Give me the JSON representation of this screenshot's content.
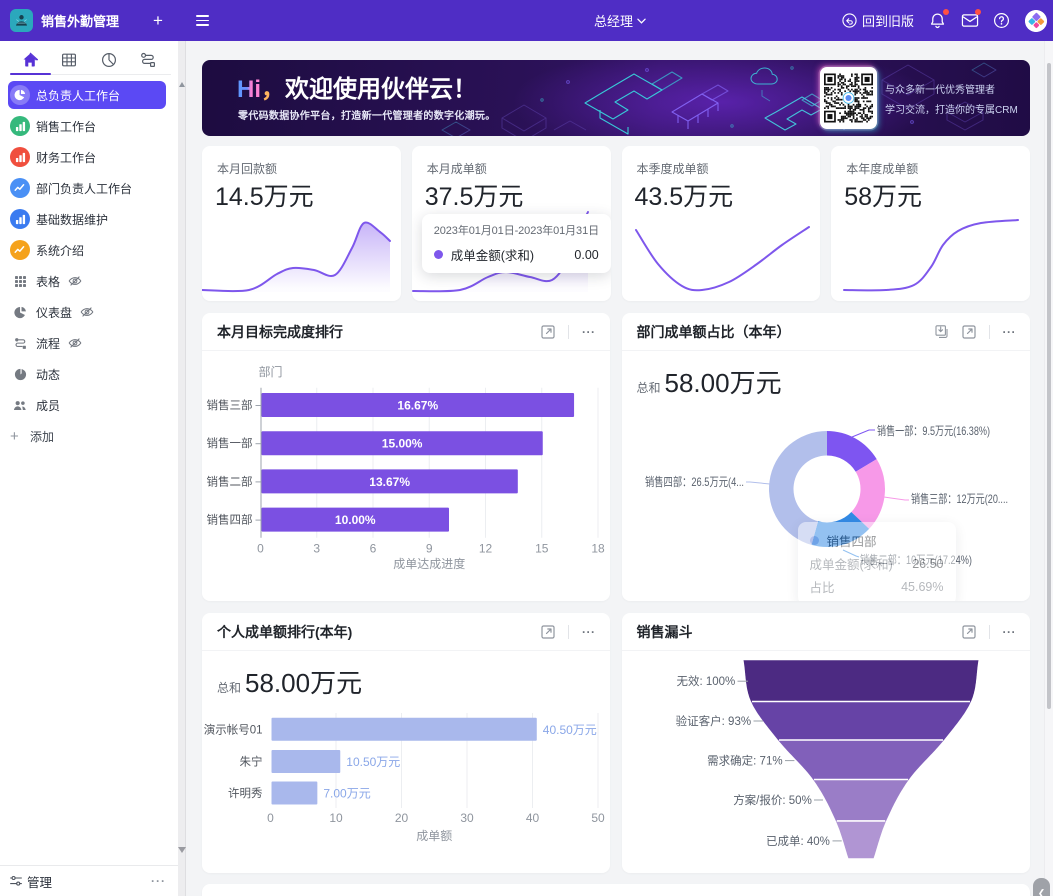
{
  "topbar": {
    "app_title": "销售外勤管理",
    "plus": "+",
    "role": "总经理",
    "back_label": "回到旧版",
    "icons": [
      "back-icon",
      "bell-icon",
      "mail-icon",
      "help-icon",
      "avatar"
    ]
  },
  "sidebar": {
    "tabs": [
      {
        "name": "home",
        "active": true
      },
      {
        "name": "table",
        "active": false
      },
      {
        "name": "clock",
        "active": false
      },
      {
        "name": "flow",
        "active": false
      }
    ],
    "items": [
      {
        "label": "总负责人工作台",
        "icon": "pie-chart",
        "color": "rgba(255,255,255,0.28)",
        "selected": true
      },
      {
        "label": "销售工作台",
        "icon": "bar-chart",
        "color": "#35b97c",
        "selected": false
      },
      {
        "label": "财务工作台",
        "icon": "bar-chart",
        "color": "#f04f3e",
        "selected": false
      },
      {
        "label": "部门负责人工作台",
        "icon": "trend-line",
        "color": "#4a90f5",
        "selected": false
      },
      {
        "label": "基础数据维护",
        "icon": "bar-chart",
        "color": "#3a7bf0",
        "selected": false
      },
      {
        "label": "系统介绍",
        "icon": "trend-line",
        "color": "#f5a21b",
        "selected": false
      }
    ],
    "tools": [
      {
        "label": "表格",
        "icon": "grid-dots",
        "eye": true
      },
      {
        "label": "仪表盘",
        "icon": "gauge-pie",
        "eye": true
      },
      {
        "label": "流程",
        "icon": "flow",
        "eye": true
      },
      {
        "label": "动态",
        "icon": "clock-solid",
        "eye": false
      },
      {
        "label": "成员",
        "icon": "members",
        "eye": false
      }
    ],
    "add_label": "添加",
    "manage_label": "管理",
    "manage_dots": "···"
  },
  "banner": {
    "hi": "Hi",
    "comma": "，",
    "title": "欢迎使用伙伴云！",
    "subtitle": "零代码数据协作平台，打造新一代管理者的数字化潮玩。",
    "qr_line1": "与众多新一代优秀管理者",
    "qr_line2": "学习交流，打造你的专属CRM"
  },
  "stat_cards": [
    {
      "title": "本月回款额",
      "value": "14.5万元"
    },
    {
      "title": "本月成单额",
      "value": "37.5万元"
    },
    {
      "title": "本季度成单额",
      "value": "43.5万元"
    },
    {
      "title": "本年度成单额",
      "value": "58万元"
    }
  ],
  "tooltip_card2": {
    "date_range": "2023年01月01日-2023年01月31日",
    "series_name": "成单金额(求和)",
    "value": "0.00",
    "dot_color": "#7e57ec"
  },
  "panels": {
    "goal": {
      "title": "本月目标完成度排行"
    },
    "dept": {
      "title": "部门成单额占比（本年）",
      "total_label": "总和",
      "total_value": "58.00万元"
    },
    "personal": {
      "title": "个人成单额排行(本年)",
      "total_label": "总和",
      "total_value": "58.00万元"
    },
    "funnel": {
      "title": "销售漏斗"
    }
  },
  "dept_tooltip": {
    "name": "销售四部",
    "row1_label": "成单金额(求和)",
    "row1_value": "26.50",
    "row2_label": "占比",
    "row2_value": "45.69%",
    "dot_color": "#b2bfeb"
  },
  "chart_data": [
    {
      "id": "goal_bar",
      "type": "bar",
      "title": "本月目标完成度排行",
      "orientation": "horizontal",
      "axis_name": "部门",
      "categories": [
        "销售三部",
        "销售一部",
        "销售二部",
        "销售四部"
      ],
      "values": [
        16.67,
        15.0,
        13.67,
        10.0
      ],
      "value_labels": [
        "16.67%",
        "15.00%",
        "13.67%",
        "10.00%"
      ],
      "xlabel": "成单达成进度",
      "xlim": [
        0,
        18
      ],
      "ticks": [
        0,
        3,
        6,
        9,
        12,
        15,
        18
      ],
      "bar_color": "#7b50e2",
      "grid": true,
      "value_label_position": "inside"
    },
    {
      "id": "dept_pie",
      "type": "pie",
      "title": "部门成单额占比（本年）",
      "total": "58.00万元",
      "series": [
        {
          "name": "销售一部",
          "amount": "9.5万元",
          "pct": 16.38,
          "color": "#7e55f1",
          "label": "销售一部：9.5万元(16.38%)"
        },
        {
          "name": "销售三部",
          "amount": "12万元",
          "pct": 20.69,
          "color": "#f799e8",
          "label": "销售三部：12万元(20...."
        },
        {
          "name": "销售二部",
          "amount": "10万元",
          "pct": 17.24,
          "color": "#338ae5",
          "label": "销售二部：10万元(17.24%)"
        },
        {
          "name": "销售四部",
          "amount": "26.5万元",
          "pct": 45.69,
          "color": "#b2bfeb",
          "label": "销售四部：26.5万元(4..."
        }
      ]
    },
    {
      "id": "personal_bar",
      "type": "bar",
      "title": "个人成单额排行(本年)",
      "orientation": "horizontal",
      "categories": [
        "演示帐号01",
        "朱宁",
        "许明秀"
      ],
      "values": [
        40.5,
        10.5,
        7.0
      ],
      "value_labels": [
        "40.50万元",
        "10.50万元",
        "7.00万元"
      ],
      "xlabel": "成单额",
      "xlim": [
        0,
        50
      ],
      "ticks": [
        0,
        10,
        20,
        30,
        40,
        50
      ],
      "bar_color": "#a9b8ec",
      "grid": true,
      "value_label_position": "outside",
      "value_label_color": "#8aa7e8"
    },
    {
      "id": "sales_funnel",
      "type": "funnel",
      "title": "销售漏斗",
      "stages": [
        {
          "label": "无效: 100%",
          "pct": 100
        },
        {
          "label": "验证客户: 93%",
          "pct": 93
        },
        {
          "label": "需求确定: 71%",
          "pct": 71
        },
        {
          "label": "方案/报价: 50%",
          "pct": 50
        },
        {
          "label": "已成单: 40%",
          "pct": 40
        }
      ],
      "colors": [
        "#4c2a82",
        "#6643a6",
        "#8160ba",
        "#9a7dc7",
        "#b095d3"
      ]
    },
    {
      "id": "spark_huikuan",
      "type": "line",
      "title": "本月回款额",
      "x": [
        0,
        47,
        75,
        91,
        112,
        133,
        150,
        162,
        178,
        188
      ],
      "y": [
        144,
        144,
        128,
        122,
        124,
        129,
        102,
        77,
        86,
        95
      ],
      "area": true
    },
    {
      "id": "spark_chengdan",
      "type": "line",
      "title": "本月成单额",
      "x": [
        1,
        48,
        76,
        94,
        118,
        140,
        158,
        170,
        176
      ],
      "y": [
        145,
        144,
        131,
        126,
        131,
        134,
        110,
        79,
        66
      ],
      "area": true
    },
    {
      "id": "spark_jidu",
      "type": "line",
      "title": "本季度成单额",
      "x": [
        14,
        36,
        60,
        80,
        107,
        135,
        160,
        187
      ],
      "y": [
        84,
        118,
        140,
        144,
        136,
        118,
        99,
        81
      ],
      "area": false
    },
    {
      "id": "spark_niandu",
      "type": "line",
      "title": "本年度成单额",
      "x": [
        13,
        55,
        83,
        100,
        112,
        127,
        150,
        187
      ],
      "y": [
        144,
        144,
        139,
        121,
        99,
        85,
        77,
        74
      ],
      "area": false
    }
  ]
}
